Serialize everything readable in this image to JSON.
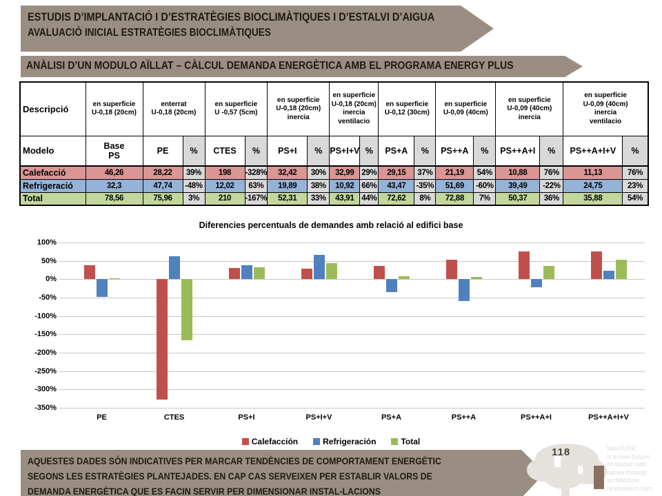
{
  "banners": {
    "top": {
      "line1": "ESTUDIS D’IMPLANTACIÓ I D’ESTRATÈGIES BIOCLIMÀTIQUES I D’ESTALVI D’AIGUA",
      "line2": "AVALUACIÓ INICIAL ESTRATÈGIES BIOCLIMÀTIQUES",
      "bg": "#9A8E83",
      "text_color": "#211911"
    },
    "section": {
      "text": "ANÀLISI D’UN MODULO AÏLLAT – CÀLCUL DEMANDA ENERGÈTICA AMB EL PROGRAMA ENERGY PLUS"
    },
    "footer": {
      "line1": "AQUESTES DADES SÓN INDICATIVES PER MARCAR TENDÈNCIES DE COMPORTAMENT ENERGÈTIC",
      "line2": "SEGONS LES ESTRATÈGIES PLANTEJADES. EN CAP CAS SERVEIXEN PER ESTABLIR VALORS DE",
      "line3": "DEMANDA ENERGÈTICA QUE ES FACIN SERVIR PER DIMENSIONAR INSTAL-LACIONS"
    }
  },
  "table": {
    "header_label": "Descripció",
    "header_groups": [
      {
        "text": "en superficie\nU-0,18 (20cm)",
        "span": 1
      },
      {
        "text": "enterrat\nU-0,18 (20cm)",
        "span": 2
      },
      {
        "text": "en superficie\nU -0,57 (5cm)",
        "span": 2
      },
      {
        "text": "en superficie\nU-0,18 (20cm)\ninercia",
        "span": 2
      },
      {
        "text": "en superficie\nU-0,18 (20cm)\ninercia\nventilacio",
        "span": 2
      },
      {
        "text": "en superficie\nU-0,12 (30cm)",
        "span": 2
      },
      {
        "text": "en superficie\nU-0,09 (40cm)",
        "span": 2
      },
      {
        "text": "en superficie\nU-0,09 (40cm)\ninercia",
        "span": 2
      },
      {
        "text": "en superficie\nU-0,09 (40cm)\ninercia\nventilacio",
        "span": 2
      }
    ],
    "model_label": "Modelo",
    "model_cells": [
      "Base\nPS",
      "PE",
      "%",
      "CTES",
      "%",
      "PS+I",
      "%",
      "PS+I+V",
      "%",
      "PS+A",
      "%",
      "PS++A",
      "%",
      "PS++A+I",
      "%",
      "PS++A+I+V",
      "%"
    ],
    "pct_bg": "#D9D9D9",
    "rows": [
      {
        "label": "Calefacció",
        "color": "#D99694",
        "cells": [
          "46,26",
          "28,22",
          "39%",
          "198",
          "-328%",
          "32,42",
          "30%",
          "32,99",
          "29%",
          "29,15",
          "37%",
          "21,19",
          "54%",
          "10,88",
          "76%",
          "11,13",
          "76%"
        ]
      },
      {
        "label": "Refrigeració",
        "color": "#95B3D7",
        "cells": [
          "32,3",
          "47,74",
          "-48%",
          "12,02",
          "63%",
          "19,89",
          "38%",
          "10,92",
          "66%",
          "43,47",
          "-35%",
          "51,69",
          "-60%",
          "39,49",
          "-22%",
          "24,75",
          "23%"
        ]
      },
      {
        "label": "Total",
        "color": "#C3D69B",
        "cells": [
          "78,56",
          "75,96",
          "3%",
          "210",
          "-167%",
          "52,31",
          "33%",
          "43,91",
          "44%",
          "72,62",
          "8%",
          "72,88",
          "7%",
          "50,37",
          "36%",
          "35,88",
          "54%"
        ]
      }
    ]
  },
  "chart_data": {
    "type": "bar",
    "title": "Diferencies percentuals de demandes amb relació al edifici base",
    "categories": [
      "PE",
      "CTES",
      "PS+I",
      "PS+I+V",
      "PS+A",
      "PS++A",
      "PS++A+I",
      "PS++A+I+V"
    ],
    "series": [
      {
        "name": "Calefacción",
        "color": "#C0504D",
        "values": [
          39,
          -328,
          30,
          29,
          37,
          54,
          76,
          76
        ]
      },
      {
        "name": "Refrigeración",
        "color": "#4F81BD",
        "values": [
          -48,
          63,
          38,
          66,
          -35,
          -60,
          -22,
          23
        ]
      },
      {
        "name": "Total",
        "color": "#9BBB59",
        "values": [
          3,
          -167,
          33,
          44,
          8,
          7,
          36,
          54
        ]
      }
    ],
    "ylim": [
      -350,
      100
    ],
    "ytick_step": 50,
    "ytick_labels": [
      "100%",
      "50%",
      "0%",
      "-50%",
      "-100%",
      "-150%",
      "-200%",
      "-250%",
      "-300%",
      "-350%"
    ],
    "grid": true,
    "legend_position": "bottom"
  },
  "footer_right": {
    "page_number": "118",
    "logo_lines": [
      "NewTURE",
      "is a new culture",
      "of relation with",
      "nature through",
      "architecture",
      "newturebcn.com"
    ]
  }
}
